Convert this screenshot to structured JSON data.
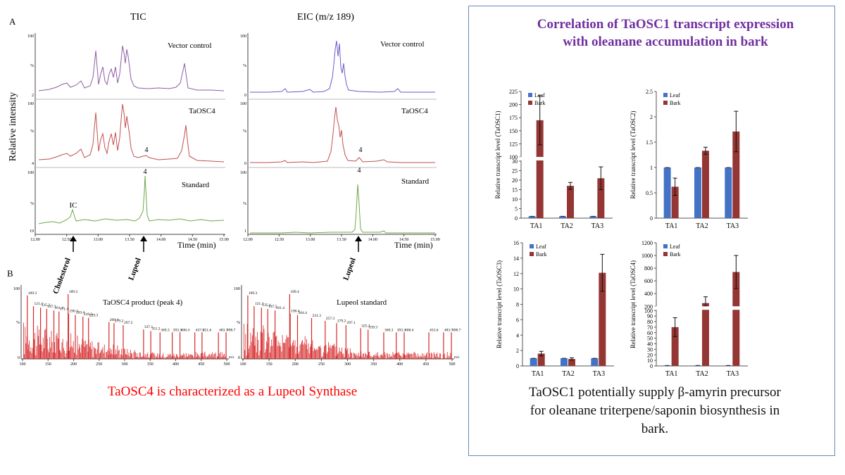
{
  "left": {
    "panel_a_label": "A",
    "panel_b_label": "B",
    "tic_title": "TIC",
    "eic_title": "EIC (m/z 189)",
    "y_label": "Relative intensity",
    "tic_rows": [
      {
        "label": "Vector control",
        "ytop": "100",
        "ymid": "%",
        "ybot": "2"
      },
      {
        "label": "TaOSC4",
        "ytop": "100",
        "ymid": "%",
        "ybot": "4",
        "peak": "4"
      },
      {
        "label": "Standard",
        "ytop": "100",
        "ymid": "%",
        "ybot": "19",
        "peak": "4",
        "ic": "IC"
      }
    ],
    "eic_rows": [
      {
        "label": "Vector control",
        "ytop": "100",
        "ymid": "%",
        "ybot": "0"
      },
      {
        "label": "TaOSC4",
        "ytop": "100",
        "ymid": "%",
        "ybot": "0",
        "peak": "4"
      },
      {
        "label": "Standard",
        "ytop": "100",
        "ymid": "%",
        "ybot": "1",
        "peak": "4"
      }
    ],
    "time_ticks": [
      "12.00",
      "12.50",
      "13.00",
      "13.50",
      "14.00",
      "14.50",
      "15.00"
    ],
    "time_label": "Time (min)",
    "arrow_cholesterol": "Cholesterol",
    "arrow_lupeol_tic": "Lupeol",
    "arrow_lupeol_eic": "Lupeol",
    "ms_left": {
      "title": "TaOSC4 product (peak 4)",
      "ytop": "100",
      "ymid": "%",
      "ybot": "0",
      "peaks": [
        "109.3",
        "121.4",
        "135.3",
        "147.3",
        "161.4",
        "171.4",
        "189.3",
        "190.3",
        "203.4",
        "218.3",
        "229.3",
        "269.3",
        "279.2",
        "297.2",
        "337.1",
        "351.2",
        "369.3",
        "393.3",
        "408.4",
        "437.5",
        "451.6",
        "483.7",
        "498.7"
      ]
    },
    "ms_right": {
      "title": "Lupeol standard",
      "ytop": "100",
      "ymid": "%",
      "ybot": "0",
      "peaks": [
        "109.3",
        "121.4",
        "135.4",
        "147.5",
        "161.4",
        "189.4",
        "190.4",
        "204.4",
        "231.3",
        "257.3",
        "279.2",
        "297.1",
        "325.2",
        "339.3",
        "369.3",
        "393.3",
        "408.4",
        "455.6",
        "483.7",
        "498.7"
      ]
    },
    "mz_ticks": [
      "100",
      "150",
      "200",
      "250",
      "300",
      "350",
      "400",
      "450",
      "500"
    ],
    "mz_unit": "m/z",
    "caption": "TaOSC4 is characterized as a Lupeol Synthase"
  },
  "right": {
    "title_line1": "Correlation of TaOSC1 transcript expression",
    "title_line2": "with oleanane accumulation in bark",
    "caption_line1": "TaOSC1 potentially supply β-amyrin precursor",
    "caption_line2": "for oleanane triterpene/saponin biosynthesis in",
    "caption_line3": "bark."
  },
  "colors": {
    "leaf": "#4472c4",
    "bark": "#943634",
    "tic_vector": "#8e5ea2",
    "tic_taosc4": "#c0504d",
    "tic_standard": "#70a84a",
    "ms_red": "#d62728",
    "title_purple": "#7030a0",
    "caption_red": "#ff0000"
  },
  "chart_data": [
    {
      "type": "bar",
      "ylabel": "Relative transcript level (TaOSC1)",
      "categories": [
        "TA1",
        "TA2",
        "TA3"
      ],
      "series": [
        {
          "name": "Leaf",
          "values": [
            1,
            1,
            1
          ],
          "errors": [
            0,
            0,
            0
          ]
        },
        {
          "name": "Bark",
          "values": [
            170,
            17,
            21
          ],
          "errors": [
            47,
            1.8,
            6
          ]
        }
      ],
      "broken_axis": true,
      "lower_ticks": [
        "0",
        "5",
        "10",
        "15",
        "20",
        "25",
        "30"
      ],
      "upper_ticks": [
        "100",
        "125",
        "150",
        "175",
        "200",
        "225"
      ],
      "lower_range": [
        0,
        30
      ],
      "upper_range": [
        100,
        225
      ],
      "legend": "top-left"
    },
    {
      "type": "bar",
      "ylabel": "Relative transcript level (TaOSC2)",
      "categories": [
        "TA1",
        "TA2",
        "TA3"
      ],
      "series": [
        {
          "name": "Leaf",
          "values": [
            1,
            1,
            1
          ],
          "errors": [
            0,
            0,
            0
          ]
        },
        {
          "name": "Bark",
          "values": [
            0.62,
            1.33,
            1.71
          ],
          "errors": [
            0.17,
            0.07,
            0.4
          ]
        }
      ],
      "ticks": [
        "0",
        "0.5",
        "1",
        "1.5",
        "2",
        "2.5"
      ],
      "ylim": [
        0,
        2.5
      ],
      "legend": "top-left"
    },
    {
      "type": "bar",
      "ylabel": "Relative transcript level (TaOSC3)",
      "categories": [
        "TA1",
        "TA2",
        "TA3"
      ],
      "series": [
        {
          "name": "Leaf",
          "values": [
            1,
            1,
            1
          ],
          "errors": [
            0,
            0,
            0
          ]
        },
        {
          "name": "Bark",
          "values": [
            1.6,
            0.9,
            12.1
          ],
          "errors": [
            0.3,
            0.15,
            2.4
          ]
        }
      ],
      "ticks": [
        "0",
        "2",
        "4",
        "6",
        "8",
        "10",
        "12",
        "14",
        "16"
      ],
      "ylim": [
        0,
        16
      ],
      "legend": "top-left"
    },
    {
      "type": "bar",
      "ylabel": "Relative transcript level (TaOSC4)",
      "categories": [
        "TA1",
        "TA2",
        "TA3"
      ],
      "series": [
        {
          "name": "Leaf",
          "values": [
            1,
            1,
            1
          ],
          "errors": [
            0,
            0,
            0
          ]
        },
        {
          "name": "Bark",
          "values": [
            70,
            250,
            740
          ],
          "errors": [
            17,
            100,
            260
          ]
        }
      ],
      "broken_axis": true,
      "lower_ticks": [
        "0",
        "10",
        "20",
        "30",
        "40",
        "50",
        "60",
        "70",
        "80",
        "90",
        "100"
      ],
      "upper_ticks": [
        "200",
        "400",
        "600",
        "800",
        "1000",
        "1200"
      ],
      "lower_range": [
        0,
        100
      ],
      "upper_range": [
        200,
        1200
      ],
      "legend": "top-left"
    }
  ]
}
